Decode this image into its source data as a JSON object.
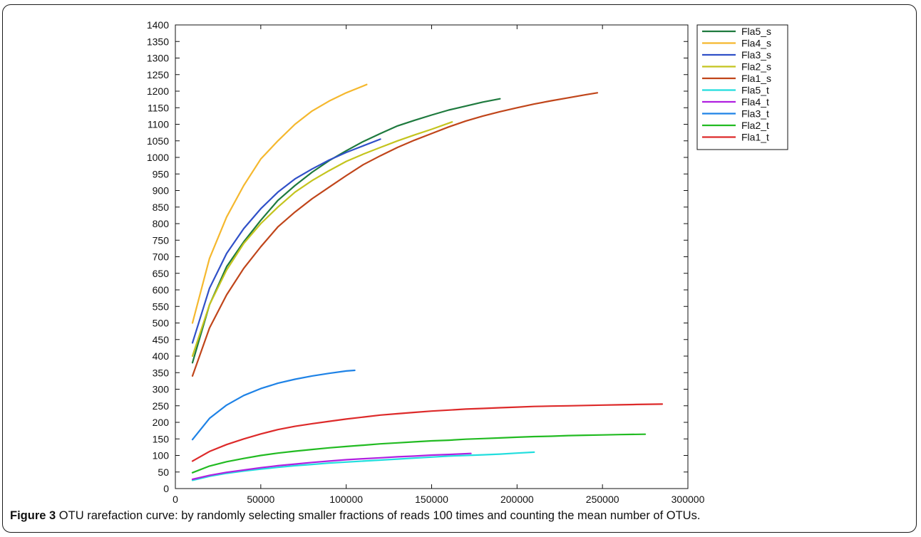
{
  "chart_data": {
    "type": "line",
    "title": "",
    "xlabel": "",
    "ylabel": "",
    "xlim": [
      0,
      300000
    ],
    "ylim": [
      0,
      1400
    ],
    "x_ticks": [
      0,
      50000,
      100000,
      150000,
      200000,
      250000,
      300000
    ],
    "y_ticks": [
      0,
      50,
      100,
      150,
      200,
      250,
      300,
      350,
      400,
      450,
      500,
      550,
      600,
      650,
      700,
      750,
      800,
      850,
      900,
      950,
      1000,
      1050,
      1100,
      1150,
      1200,
      1250,
      1300,
      1350,
      1400
    ],
    "grid": false,
    "legend_position": "top-right",
    "series": [
      {
        "name": "Fla5_s",
        "color": "#1e7a3e",
        "x": [
          10000,
          20000,
          30000,
          40000,
          50000,
          60000,
          70000,
          80000,
          90000,
          100000,
          110000,
          120000,
          130000,
          140000,
          150000,
          160000,
          170000,
          180000,
          190000
        ],
        "y": [
          380,
          555,
          670,
          745,
          810,
          870,
          915,
          955,
          990,
          1020,
          1048,
          1072,
          1095,
          1112,
          1128,
          1143,
          1155,
          1167,
          1177
        ]
      },
      {
        "name": "Fla4_s",
        "color": "#f5b82e",
        "x": [
          10000,
          20000,
          30000,
          40000,
          50000,
          60000,
          70000,
          80000,
          90000,
          100000,
          112000
        ],
        "y": [
          500,
          695,
          820,
          915,
          995,
          1050,
          1100,
          1140,
          1170,
          1195,
          1220
        ]
      },
      {
        "name": "Fla3_s",
        "color": "#3050c8",
        "x": [
          10000,
          20000,
          30000,
          40000,
          50000,
          60000,
          70000,
          80000,
          90000,
          100000,
          110000,
          120000
        ],
        "y": [
          440,
          605,
          710,
          785,
          845,
          895,
          935,
          965,
          992,
          1015,
          1035,
          1055
        ]
      },
      {
        "name": "Fla2_s",
        "color": "#c4c41e",
        "x": [
          10000,
          20000,
          30000,
          40000,
          50000,
          60000,
          70000,
          80000,
          90000,
          100000,
          110000,
          120000,
          130000,
          140000,
          150000,
          162000
        ],
        "y": [
          400,
          555,
          660,
          740,
          800,
          850,
          895,
          930,
          960,
          988,
          1010,
          1030,
          1050,
          1068,
          1085,
          1107
        ]
      },
      {
        "name": "Fla1_s",
        "color": "#c0451a",
        "x": [
          10000,
          20000,
          30000,
          40000,
          50000,
          60000,
          70000,
          80000,
          90000,
          100000,
          110000,
          120000,
          130000,
          140000,
          150000,
          160000,
          170000,
          180000,
          190000,
          200000,
          210000,
          220000,
          230000,
          240000,
          247000
        ],
        "y": [
          340,
          485,
          585,
          665,
          730,
          790,
          835,
          875,
          910,
          945,
          978,
          1005,
          1030,
          1052,
          1072,
          1092,
          1110,
          1125,
          1138,
          1150,
          1161,
          1171,
          1180,
          1189,
          1195
        ]
      },
      {
        "name": "Fla5_t",
        "color": "#22dede",
        "x": [
          10000,
          20000,
          30000,
          40000,
          50000,
          60000,
          70000,
          80000,
          90000,
          100000,
          110000,
          120000,
          130000,
          140000,
          150000,
          160000,
          170000,
          180000,
          190000,
          200000,
          210000
        ],
        "y": [
          25,
          37,
          46,
          53,
          59,
          64,
          69,
          73,
          77,
          80,
          83,
          86,
          89,
          92,
          95,
          98,
          100,
          102,
          104,
          107,
          110
        ]
      },
      {
        "name": "Fla4_t",
        "color": "#b020e0",
        "x": [
          10000,
          20000,
          30000,
          40000,
          50000,
          60000,
          70000,
          80000,
          90000,
          100000,
          110000,
          120000,
          130000,
          140000,
          150000,
          160000,
          173000
        ],
        "y": [
          28,
          40,
          49,
          56,
          63,
          69,
          74,
          79,
          83,
          87,
          90,
          93,
          96,
          98,
          101,
          103,
          106
        ]
      },
      {
        "name": "Fla3_t",
        "color": "#1e82e6",
        "x": [
          10000,
          20000,
          30000,
          40000,
          50000,
          60000,
          70000,
          80000,
          90000,
          100000,
          105000
        ],
        "y": [
          148,
          212,
          252,
          281,
          302,
          318,
          330,
          340,
          348,
          355,
          357
        ]
      },
      {
        "name": "Fla2_t",
        "color": "#22bb22",
        "x": [
          10000,
          20000,
          30000,
          40000,
          50000,
          60000,
          70000,
          80000,
          90000,
          100000,
          110000,
          120000,
          130000,
          140000,
          150000,
          160000,
          170000,
          180000,
          190000,
          200000,
          210000,
          220000,
          230000,
          240000,
          250000,
          260000,
          275000
        ],
        "y": [
          48,
          68,
          81,
          91,
          100,
          107,
          113,
          118,
          123,
          127,
          131,
          135,
          138,
          141,
          144,
          146,
          149,
          151,
          153,
          155,
          157,
          158,
          160,
          161,
          162,
          163,
          164
        ]
      },
      {
        "name": "Fla1_t",
        "color": "#dd2a2a",
        "x": [
          10000,
          20000,
          30000,
          40000,
          50000,
          60000,
          70000,
          80000,
          90000,
          100000,
          110000,
          120000,
          130000,
          140000,
          150000,
          160000,
          170000,
          180000,
          190000,
          200000,
          210000,
          220000,
          230000,
          240000,
          250000,
          260000,
          270000,
          285000
        ],
        "y": [
          83,
          112,
          133,
          150,
          165,
          178,
          188,
          196,
          203,
          210,
          216,
          222,
          226,
          230,
          234,
          237,
          240,
          242,
          244,
          246,
          248,
          249,
          250,
          251,
          252,
          253,
          254,
          255
        ]
      }
    ]
  },
  "caption": {
    "label": "Figure 3",
    "text": "OTU rarefaction curve: by randomly selecting smaller fractions of reads 100 times and counting the mean number of OTUs."
  }
}
